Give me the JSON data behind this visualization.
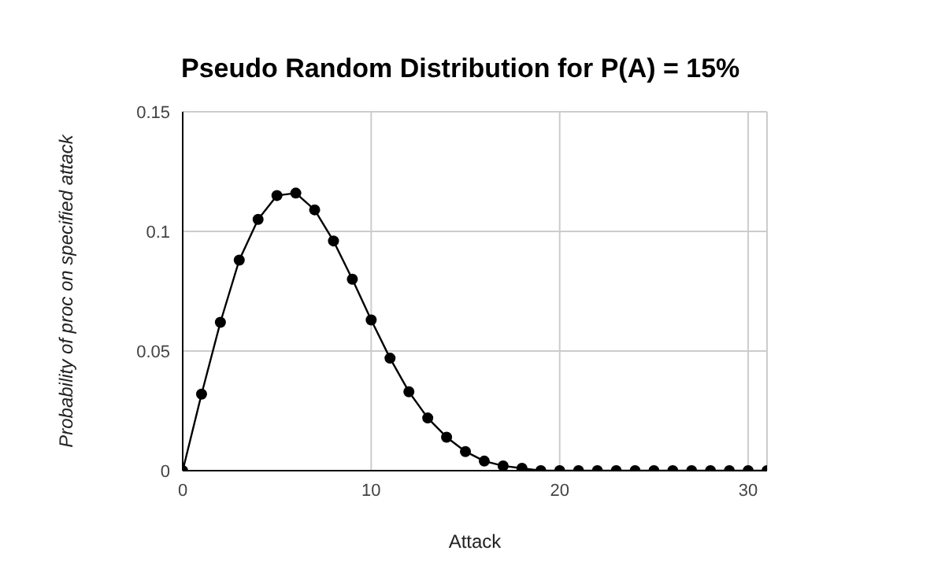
{
  "chart_data": {
    "type": "line",
    "title": "Pseudo Random Distribution for P(A) = 15%",
    "xlabel": "Attack",
    "ylabel": "Probability of proc on specified attack",
    "x": [
      0,
      1,
      2,
      3,
      4,
      5,
      6,
      7,
      8,
      9,
      10,
      11,
      12,
      13,
      14,
      15,
      16,
      17,
      18,
      19,
      20,
      21,
      22,
      23,
      24,
      25,
      26,
      27,
      28,
      29,
      30,
      31
    ],
    "series": [
      {
        "color": "#000000",
        "values": [
          0,
          0.032,
          0.062,
          0.088,
          0.105,
          0.115,
          0.116,
          0.109,
          0.096,
          0.08,
          0.063,
          0.047,
          0.033,
          0.022,
          0.014,
          0.008,
          0.004,
          0.002,
          0.001,
          0,
          0,
          0,
          0,
          0,
          0,
          0,
          0,
          0,
          0,
          0,
          0,
          0
        ]
      }
    ],
    "xlim": [
      0,
      31
    ],
    "xticks": [
      0,
      10,
      20,
      30
    ],
    "ylim": [
      0,
      0.15
    ],
    "yticks": [
      0,
      0.05,
      0.1,
      0.15
    ],
    "grid": true,
    "marker": "circle",
    "line_style": "solid"
  }
}
